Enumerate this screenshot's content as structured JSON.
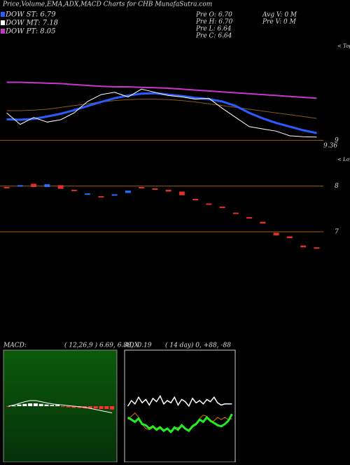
{
  "header": {
    "title": "Price,Volume,EMA,ADX,MACD Charts for CHB MunafaSutra.com",
    "legend": [
      "DOW ST: 6.79",
      "DOW MT: 7.18",
      "DOW PT: 8.05"
    ],
    "prev": [
      "Pre  O: 6.70",
      "Pre  H: 6.70",
      "Pre  L: 6.64",
      "Pre  C: 6.64"
    ],
    "volume": [
      "Avg V: 0  M",
      "Pre  V: 0  M"
    ]
  },
  "chart_data": [
    {
      "type": "line",
      "tops_label": "< Tops",
      "last_label": "9.36",
      "categories": [
        null,
        null,
        null,
        null,
        null,
        null,
        null,
        null,
        null,
        null,
        null,
        null,
        null,
        null,
        null,
        null,
        null,
        null,
        null,
        null,
        null,
        null,
        null,
        null
      ],
      "ylim": [
        6.25,
        11.15
      ],
      "yticks": [
        9
      ],
      "tick_color": "#a0620a",
      "series": [
        {
          "color": "#cc33cc",
          "values": [
            10.27,
            10.27,
            10.26,
            10.25,
            10.24,
            10.22,
            10.2,
            10.18,
            10.17,
            10.17,
            10.16,
            10.15,
            10.14,
            10.12,
            10.1,
            10.08,
            10.06,
            10.04,
            10.02,
            10.0,
            9.98,
            9.96,
            9.94,
            9.92
          ]
        },
        {
          "color": "#8a5a1a",
          "values": [
            9.65,
            9.65,
            9.66,
            9.68,
            9.72,
            9.76,
            9.8,
            9.84,
            9.87,
            9.89,
            9.9,
            9.9,
            9.89,
            9.87,
            9.84,
            9.8,
            9.76,
            9.72,
            9.68,
            9.64,
            9.6,
            9.56,
            9.52,
            9.48
          ]
        },
        {
          "color": "#2a5cff",
          "values": [
            9.46,
            9.45,
            9.47,
            9.52,
            9.58,
            9.66,
            9.75,
            9.84,
            9.92,
            9.98,
            10.02,
            10.03,
            10.0,
            9.97,
            9.93,
            9.9,
            9.85,
            9.75,
            9.6,
            9.48,
            9.38,
            9.3,
            9.22,
            9.16
          ]
        },
        {
          "color": "#ffffff",
          "values": [
            9.6,
            9.35,
            9.5,
            9.4,
            9.45,
            9.6,
            9.85,
            10.0,
            10.05,
            9.95,
            10.12,
            10.05,
            9.98,
            9.95,
            9.9,
            9.92,
            9.7,
            9.5,
            9.3,
            9.25,
            9.2,
            9.1,
            9.08,
            9.07
          ]
        }
      ]
    },
    {
      "type": "candlestick",
      "lows_label": "< Lows",
      "categories": [
        null,
        null,
        null,
        null,
        null,
        null,
        null,
        null,
        null,
        null,
        null,
        null,
        null,
        null,
        null,
        null,
        null,
        null,
        null,
        null,
        null,
        null,
        null,
        null
      ],
      "ylim": [
        6.25,
        11.15
      ],
      "yticks": [
        8,
        7
      ],
      "tick_color": "#a0620a",
      "up_color": "#2a6cff",
      "down_color": "#e0302a",
      "open": [
        7.98,
        8.0,
        8.05,
        7.98,
        8.02,
        7.92,
        7.82,
        7.78,
        7.8,
        7.85,
        7.98,
        7.95,
        7.92,
        7.88,
        7.72,
        7.62,
        7.55,
        7.42,
        7.32,
        7.22,
        6.98,
        6.9,
        6.7,
        6.66
      ],
      "close": [
        7.95,
        8.02,
        7.98,
        8.04,
        7.94,
        7.9,
        7.84,
        7.77,
        7.82,
        7.9,
        7.96,
        7.93,
        7.88,
        7.8,
        7.7,
        7.6,
        7.52,
        7.4,
        7.3,
        7.18,
        6.92,
        6.86,
        6.66,
        6.64
      ]
    },
    {
      "type": "macd",
      "title": "MACD:",
      "subtitle": "( 12,26,9 ) 6.69, 6.88, -0.19",
      "categories": [
        null,
        null,
        null,
        null,
        null,
        null,
        null,
        null,
        null,
        null,
        null,
        null,
        null,
        null,
        null,
        null,
        null,
        null,
        null,
        null
      ],
      "ylim": [
        -1,
        1
      ],
      "up_color": "#ffffff",
      "down_color": "#ff3030",
      "series": [
        {
          "color": "#ffffff",
          "values": [
            0.0,
            0.02,
            0.05,
            0.08,
            0.1,
            0.1,
            0.08,
            0.06,
            0.04,
            0.03,
            0.02,
            0.01,
            0.0,
            -0.01,
            -0.02,
            -0.04,
            -0.06,
            -0.08,
            -0.1,
            -0.12
          ]
        }
      ],
      "histogram": [
        -0.01,
        0.01,
        0.03,
        0.04,
        0.05,
        0.05,
        0.04,
        0.03,
        0.02,
        0.02,
        -0.01,
        -0.02,
        -0.03,
        -0.03,
        -0.04,
        -0.04,
        -0.04,
        -0.05,
        -0.05,
        -0.06
      ]
    },
    {
      "type": "line",
      "title": "ADX",
      "subtitle": "( 14  day) 0, +88, -88",
      "categories": [
        null,
        null,
        null,
        null,
        null,
        null,
        null,
        null,
        null,
        null,
        null,
        null,
        null,
        null,
        null,
        null,
        null,
        null,
        null,
        null,
        null,
        null,
        null,
        null,
        null,
        null,
        null,
        null,
        null,
        null
      ],
      "ylim": [
        0,
        100
      ],
      "series": [
        {
          "color": "#ffffff",
          "values": [
            50,
            55,
            52,
            58,
            53,
            56,
            51,
            57,
            54,
            59,
            52,
            55,
            53,
            58,
            51,
            56,
            54,
            50,
            57,
            53,
            55,
            52,
            56,
            54,
            58,
            53,
            51,
            52,
            52,
            52
          ]
        },
        {
          "color": "#e07000",
          "values": [
            38,
            41,
            44,
            40,
            34,
            30,
            29,
            31,
            30,
            32,
            29,
            30,
            28,
            30,
            31,
            32,
            30,
            29,
            33,
            35,
            39,
            42,
            41,
            36,
            37,
            40,
            38,
            40,
            38,
            39
          ]
        },
        {
          "color": "#22ee22",
          "values": [
            40,
            38,
            36,
            39,
            34,
            33,
            30,
            32,
            29,
            31,
            28,
            30,
            27,
            31,
            29,
            33,
            30,
            28,
            32,
            34,
            38,
            36,
            40,
            37,
            35,
            33,
            32,
            34,
            37,
            43
          ]
        }
      ]
    }
  ]
}
